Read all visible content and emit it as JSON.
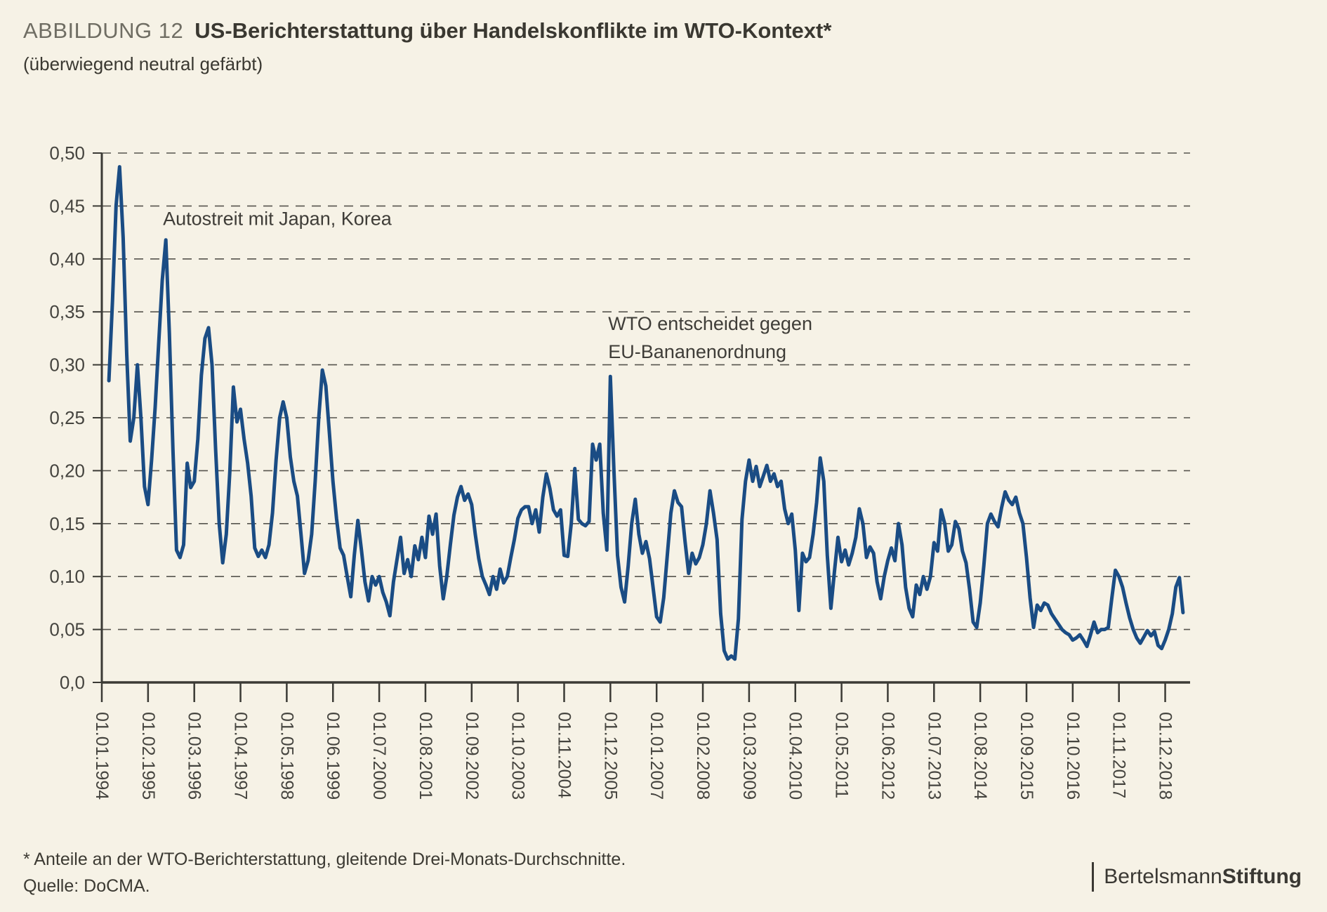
{
  "header": {
    "kicker": "ABBILDUNG 12",
    "title": "US-Berichterstattung über Handelskonflikte im WTO-Kontext*",
    "subtitle": "(überwiegend neutral gefärbt)"
  },
  "footer": {
    "note": "* Anteile an der WTO-Berichterstattung, gleitende Drei-Monats-Durchschnitte.",
    "source": "Quelle: DoCMA.",
    "brand_regular": "Bertelsmann",
    "brand_bold": "Stiftung"
  },
  "colors": {
    "background": "#f6f2e6",
    "line": "#1a4c84",
    "grid": "#56544e",
    "axis": "#3b3a35",
    "label": "#45443f",
    "annotation": "#3f3d38"
  },
  "chart_data": {
    "type": "line",
    "title": "US-Berichterstattung über Handelskonflikte im WTO-Kontext (überwiegend neutral gefärbt)",
    "xlabel": "",
    "ylabel": "Anteile an der WTO-Berichterstattung, gleitende Drei-Monats-Durchschnitte",
    "ylim": [
      0,
      0.5
    ],
    "grid": "dashed-horizontal",
    "legend_position": "none",
    "x_start_month": "1994-01",
    "x_tick_every_months": 13,
    "x_tick_labels": [
      "01.01.1994",
      "01.02.1995",
      "01.03.1996",
      "01.04.1997",
      "01.05.1998",
      "01.06.1999",
      "01.07.2000",
      "01.08.2001",
      "01.09.2002",
      "01.10.2003",
      "01.11.2004",
      "01.12.2005",
      "01.01.2007",
      "01.02.2008",
      "01.03.2009",
      "01.04.2010",
      "01.05.2011",
      "01.06.2012",
      "01.07.2013",
      "01.08.2014",
      "01.09.2015",
      "01.10.2016",
      "01.11.2017",
      "01.12.2018"
    ],
    "y_tick_labels": [
      "0,0",
      "0,05",
      "0,10",
      "0,15",
      "0,20",
      "0,25",
      "0,30",
      "0,35",
      "0,40",
      "0,45",
      "0,50"
    ],
    "y_tick_values": [
      0,
      0.05,
      0.1,
      0.15,
      0.2,
      0.25,
      0.3,
      0.35,
      0.4,
      0.45,
      0.5
    ],
    "annotations": [
      {
        "lines": [
          "Autostreit mit Japan, Korea"
        ],
        "month": 17.2,
        "value": 0.432
      },
      {
        "lines": [
          "WTO entscheidet gegen",
          "EU-Bananenordnung"
        ],
        "month": 142.4,
        "value": 0.333
      }
    ],
    "series": [
      {
        "name": "Anteil WTO-Berichterstattung (gleitender 3-Monats-Durchschnitt)",
        "color": "#1a4c84",
        "first_month_index": 2,
        "values": [
          0.285,
          0.36,
          0.45,
          0.487,
          0.42,
          0.31,
          0.228,
          0.25,
          0.3,
          0.25,
          0.185,
          0.168,
          0.21,
          0.26,
          0.32,
          0.38,
          0.418,
          0.33,
          0.22,
          0.125,
          0.118,
          0.13,
          0.207,
          0.184,
          0.19,
          0.23,
          0.29,
          0.325,
          0.335,
          0.3,
          0.22,
          0.15,
          0.113,
          0.14,
          0.2,
          0.279,
          0.246,
          0.258,
          0.23,
          0.207,
          0.176,
          0.127,
          0.119,
          0.125,
          0.118,
          0.13,
          0.16,
          0.21,
          0.25,
          0.265,
          0.25,
          0.213,
          0.19,
          0.176,
          0.14,
          0.103,
          0.115,
          0.14,
          0.19,
          0.25,
          0.295,
          0.28,
          0.235,
          0.19,
          0.155,
          0.127,
          0.12,
          0.1,
          0.081,
          0.12,
          0.153,
          0.125,
          0.095,
          0.077,
          0.1,
          0.092,
          0.1,
          0.085,
          0.076,
          0.063,
          0.095,
          0.116,
          0.137,
          0.103,
          0.116,
          0.1,
          0.129,
          0.116,
          0.137,
          0.118,
          0.157,
          0.14,
          0.159,
          0.11,
          0.079,
          0.1,
          0.13,
          0.158,
          0.175,
          0.185,
          0.172,
          0.178,
          0.168,
          0.14,
          0.117,
          0.1,
          0.092,
          0.083,
          0.1,
          0.088,
          0.107,
          0.094,
          0.1,
          0.118,
          0.135,
          0.155,
          0.163,
          0.166,
          0.166,
          0.15,
          0.163,
          0.142,
          0.175,
          0.197,
          0.183,
          0.163,
          0.157,
          0.163,
          0.12,
          0.119,
          0.15,
          0.202,
          0.154,
          0.15,
          0.148,
          0.152,
          0.225,
          0.21,
          0.225,
          0.16,
          0.125,
          0.289,
          0.2,
          0.12,
          0.09,
          0.076,
          0.11,
          0.15,
          0.173,
          0.14,
          0.122,
          0.133,
          0.117,
          0.09,
          0.062,
          0.057,
          0.08,
          0.12,
          0.16,
          0.181,
          0.17,
          0.166,
          0.133,
          0.103,
          0.122,
          0.112,
          0.118,
          0.13,
          0.15,
          0.181,
          0.16,
          0.135,
          0.065,
          0.03,
          0.022,
          0.025,
          0.022,
          0.06,
          0.154,
          0.19,
          0.21,
          0.19,
          0.204,
          0.185,
          0.195,
          0.205,
          0.19,
          0.197,
          0.185,
          0.19,
          0.164,
          0.15,
          0.159,
          0.125,
          0.068,
          0.122,
          0.114,
          0.118,
          0.14,
          0.17,
          0.212,
          0.19,
          0.12,
          0.07,
          0.105,
          0.137,
          0.114,
          0.125,
          0.111,
          0.122,
          0.137,
          0.164,
          0.15,
          0.118,
          0.128,
          0.122,
          0.095,
          0.079,
          0.1,
          0.115,
          0.127,
          0.115,
          0.15,
          0.13,
          0.09,
          0.07,
          0.062,
          0.092,
          0.083,
          0.1,
          0.088,
          0.1,
          0.132,
          0.124,
          0.163,
          0.15,
          0.124,
          0.13,
          0.152,
          0.145,
          0.124,
          0.113,
          0.088,
          0.057,
          0.052,
          0.075,
          0.11,
          0.15,
          0.159,
          0.152,
          0.147,
          0.165,
          0.18,
          0.172,
          0.168,
          0.175,
          0.16,
          0.15,
          0.118,
          0.08,
          0.052,
          0.073,
          0.068,
          0.075,
          0.073,
          0.065,
          0.06,
          0.055,
          0.05,
          0.047,
          0.045,
          0.04,
          0.042,
          0.045,
          0.04,
          0.034,
          0.045,
          0.057,
          0.047,
          0.05,
          0.05,
          0.052,
          0.08,
          0.106,
          0.1,
          0.09,
          0.075,
          0.061,
          0.05,
          0.042,
          0.037,
          0.043,
          0.049,
          0.044,
          0.048,
          0.035,
          0.032,
          0.04,
          0.05,
          0.065,
          0.09,
          0.099,
          0.066
        ]
      }
    ]
  }
}
